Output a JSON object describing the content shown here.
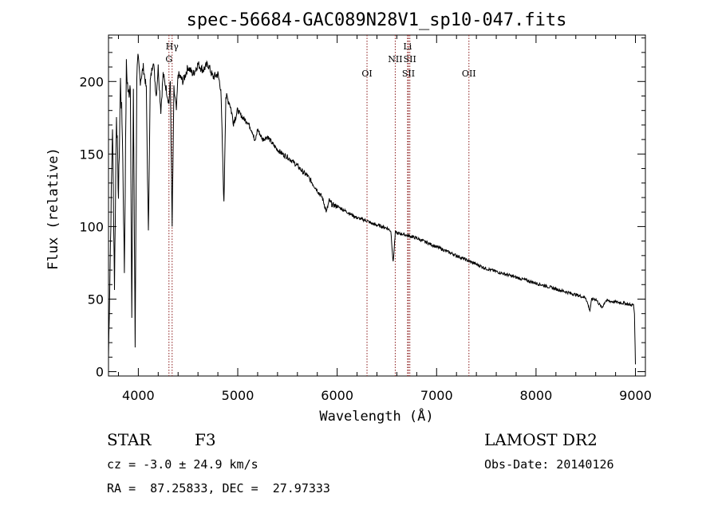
{
  "chart_data": {
    "type": "line",
    "title": "spec-56684-GAC089N28V1_sp10-047.fits",
    "xlabel": "Wavelength (Å)",
    "ylabel": "Flux (relative)",
    "xlim": [
      3700,
      9100
    ],
    "ylim": [
      -3,
      232
    ],
    "xticks": [
      4000,
      5000,
      6000,
      7000,
      8000,
      9000
    ],
    "yticks": [
      0,
      50,
      100,
      150,
      200
    ],
    "grid": false,
    "lines": [
      {
        "label": "Hγ",
        "wavelength": 4340,
        "row": 0
      },
      {
        "label": "G",
        "wavelength": 4308,
        "row": 1
      },
      {
        "label": "OI",
        "wavelength": 6300,
        "row": 2
      },
      {
        "label": "Li",
        "wavelength": 6708,
        "row": 0
      },
      {
        "label": "NII",
        "wavelength": 6584,
        "row": 1
      },
      {
        "label": "SII",
        "wavelength": 6731,
        "row": 1
      },
      {
        "label": "SII",
        "wavelength": 6717,
        "row": 2
      },
      {
        "label": "OII",
        "wavelength": 7325,
        "row": 2
      }
    ],
    "spectrum": [
      [
        3700,
        10
      ],
      [
        3720,
        90
      ],
      [
        3740,
        170
      ],
      [
        3760,
        60
      ],
      [
        3780,
        180
      ],
      [
        3800,
        120
      ],
      [
        3820,
        200
      ],
      [
        3840,
        165
      ],
      [
        3860,
        70
      ],
      [
        3880,
        210
      ],
      [
        3900,
        190
      ],
      [
        3920,
        200
      ],
      [
        3934,
        35
      ],
      [
        3950,
        195
      ],
      [
        3968,
        20
      ],
      [
        3985,
        205
      ],
      [
        4000,
        215
      ],
      [
        4020,
        200
      ],
      [
        4050,
        210
      ],
      [
        4080,
        195
      ],
      [
        4101,
        95
      ],
      [
        4120,
        200
      ],
      [
        4150,
        215
      ],
      [
        4180,
        190
      ],
      [
        4200,
        210
      ],
      [
        4226,
        180
      ],
      [
        4250,
        205
      ],
      [
        4280,
        195
      ],
      [
        4308,
        185
      ],
      [
        4322,
        200
      ],
      [
        4340,
        100
      ],
      [
        4358,
        195
      ],
      [
        4383,
        180
      ],
      [
        4400,
        205
      ],
      [
        4450,
        200
      ],
      [
        4500,
        210
      ],
      [
        4550,
        205
      ],
      [
        4600,
        212
      ],
      [
        4650,
        208
      ],
      [
        4700,
        212
      ],
      [
        4750,
        203
      ],
      [
        4800,
        205
      ],
      [
        4830,
        195
      ],
      [
        4861,
        115
      ],
      [
        4880,
        190
      ],
      [
        4920,
        185
      ],
      [
        4957,
        172
      ],
      [
        5000,
        180
      ],
      [
        5050,
        175
      ],
      [
        5100,
        172
      ],
      [
        5150,
        165
      ],
      [
        5172,
        158
      ],
      [
        5200,
        167
      ],
      [
        5250,
        160
      ],
      [
        5300,
        162
      ],
      [
        5350,
        157
      ],
      [
        5400,
        153
      ],
      [
        5450,
        150
      ],
      [
        5500,
        148
      ],
      [
        5550,
        145
      ],
      [
        5600,
        142
      ],
      [
        5650,
        138
      ],
      [
        5700,
        135
      ],
      [
        5750,
        130
      ],
      [
        5800,
        125
      ],
      [
        5850,
        120
      ],
      [
        5893,
        110
      ],
      [
        5920,
        118
      ],
      [
        5950,
        115
      ],
      [
        6000,
        114
      ],
      [
        6050,
        112
      ],
      [
        6100,
        110
      ],
      [
        6150,
        108
      ],
      [
        6200,
        106
      ],
      [
        6250,
        105
      ],
      [
        6300,
        104
      ],
      [
        6350,
        102
      ],
      [
        6400,
        101
      ],
      [
        6450,
        100
      ],
      [
        6500,
        99
      ],
      [
        6540,
        97
      ],
      [
        6563,
        75
      ],
      [
        6585,
        96
      ],
      [
        6620,
        95
      ],
      [
        6650,
        95
      ],
      [
        6700,
        94
      ],
      [
        6750,
        93
      ],
      [
        6800,
        92
      ],
      [
        6900,
        89
      ],
      [
        7000,
        86
      ],
      [
        7100,
        83
      ],
      [
        7200,
        80
      ],
      [
        7300,
        77
      ],
      [
        7400,
        74
      ],
      [
        7500,
        71
      ],
      [
        7600,
        69
      ],
      [
        7700,
        67
      ],
      [
        7800,
        65
      ],
      [
        7900,
        63
      ],
      [
        8000,
        61
      ],
      [
        8100,
        59
      ],
      [
        8200,
        57
      ],
      [
        8300,
        55
      ],
      [
        8400,
        53
      ],
      [
        8500,
        51
      ],
      [
        8542,
        42
      ],
      [
        8560,
        50
      ],
      [
        8600,
        50
      ],
      [
        8662,
        44
      ],
      [
        8700,
        49
      ],
      [
        8800,
        48
      ],
      [
        8900,
        47
      ],
      [
        8950,
        46
      ],
      [
        8980,
        46
      ],
      [
        8990,
        40
      ],
      [
        9000,
        5
      ]
    ]
  },
  "info": {
    "class_label": "STAR",
    "subclass": "F3",
    "cz": "cz = -3.0 ± 24.9 km/s",
    "coords": "RA =  87.25833, DEC =  27.97333",
    "survey": "LAMOST DR2",
    "obs_date": "Obs-Date: 20140126"
  }
}
